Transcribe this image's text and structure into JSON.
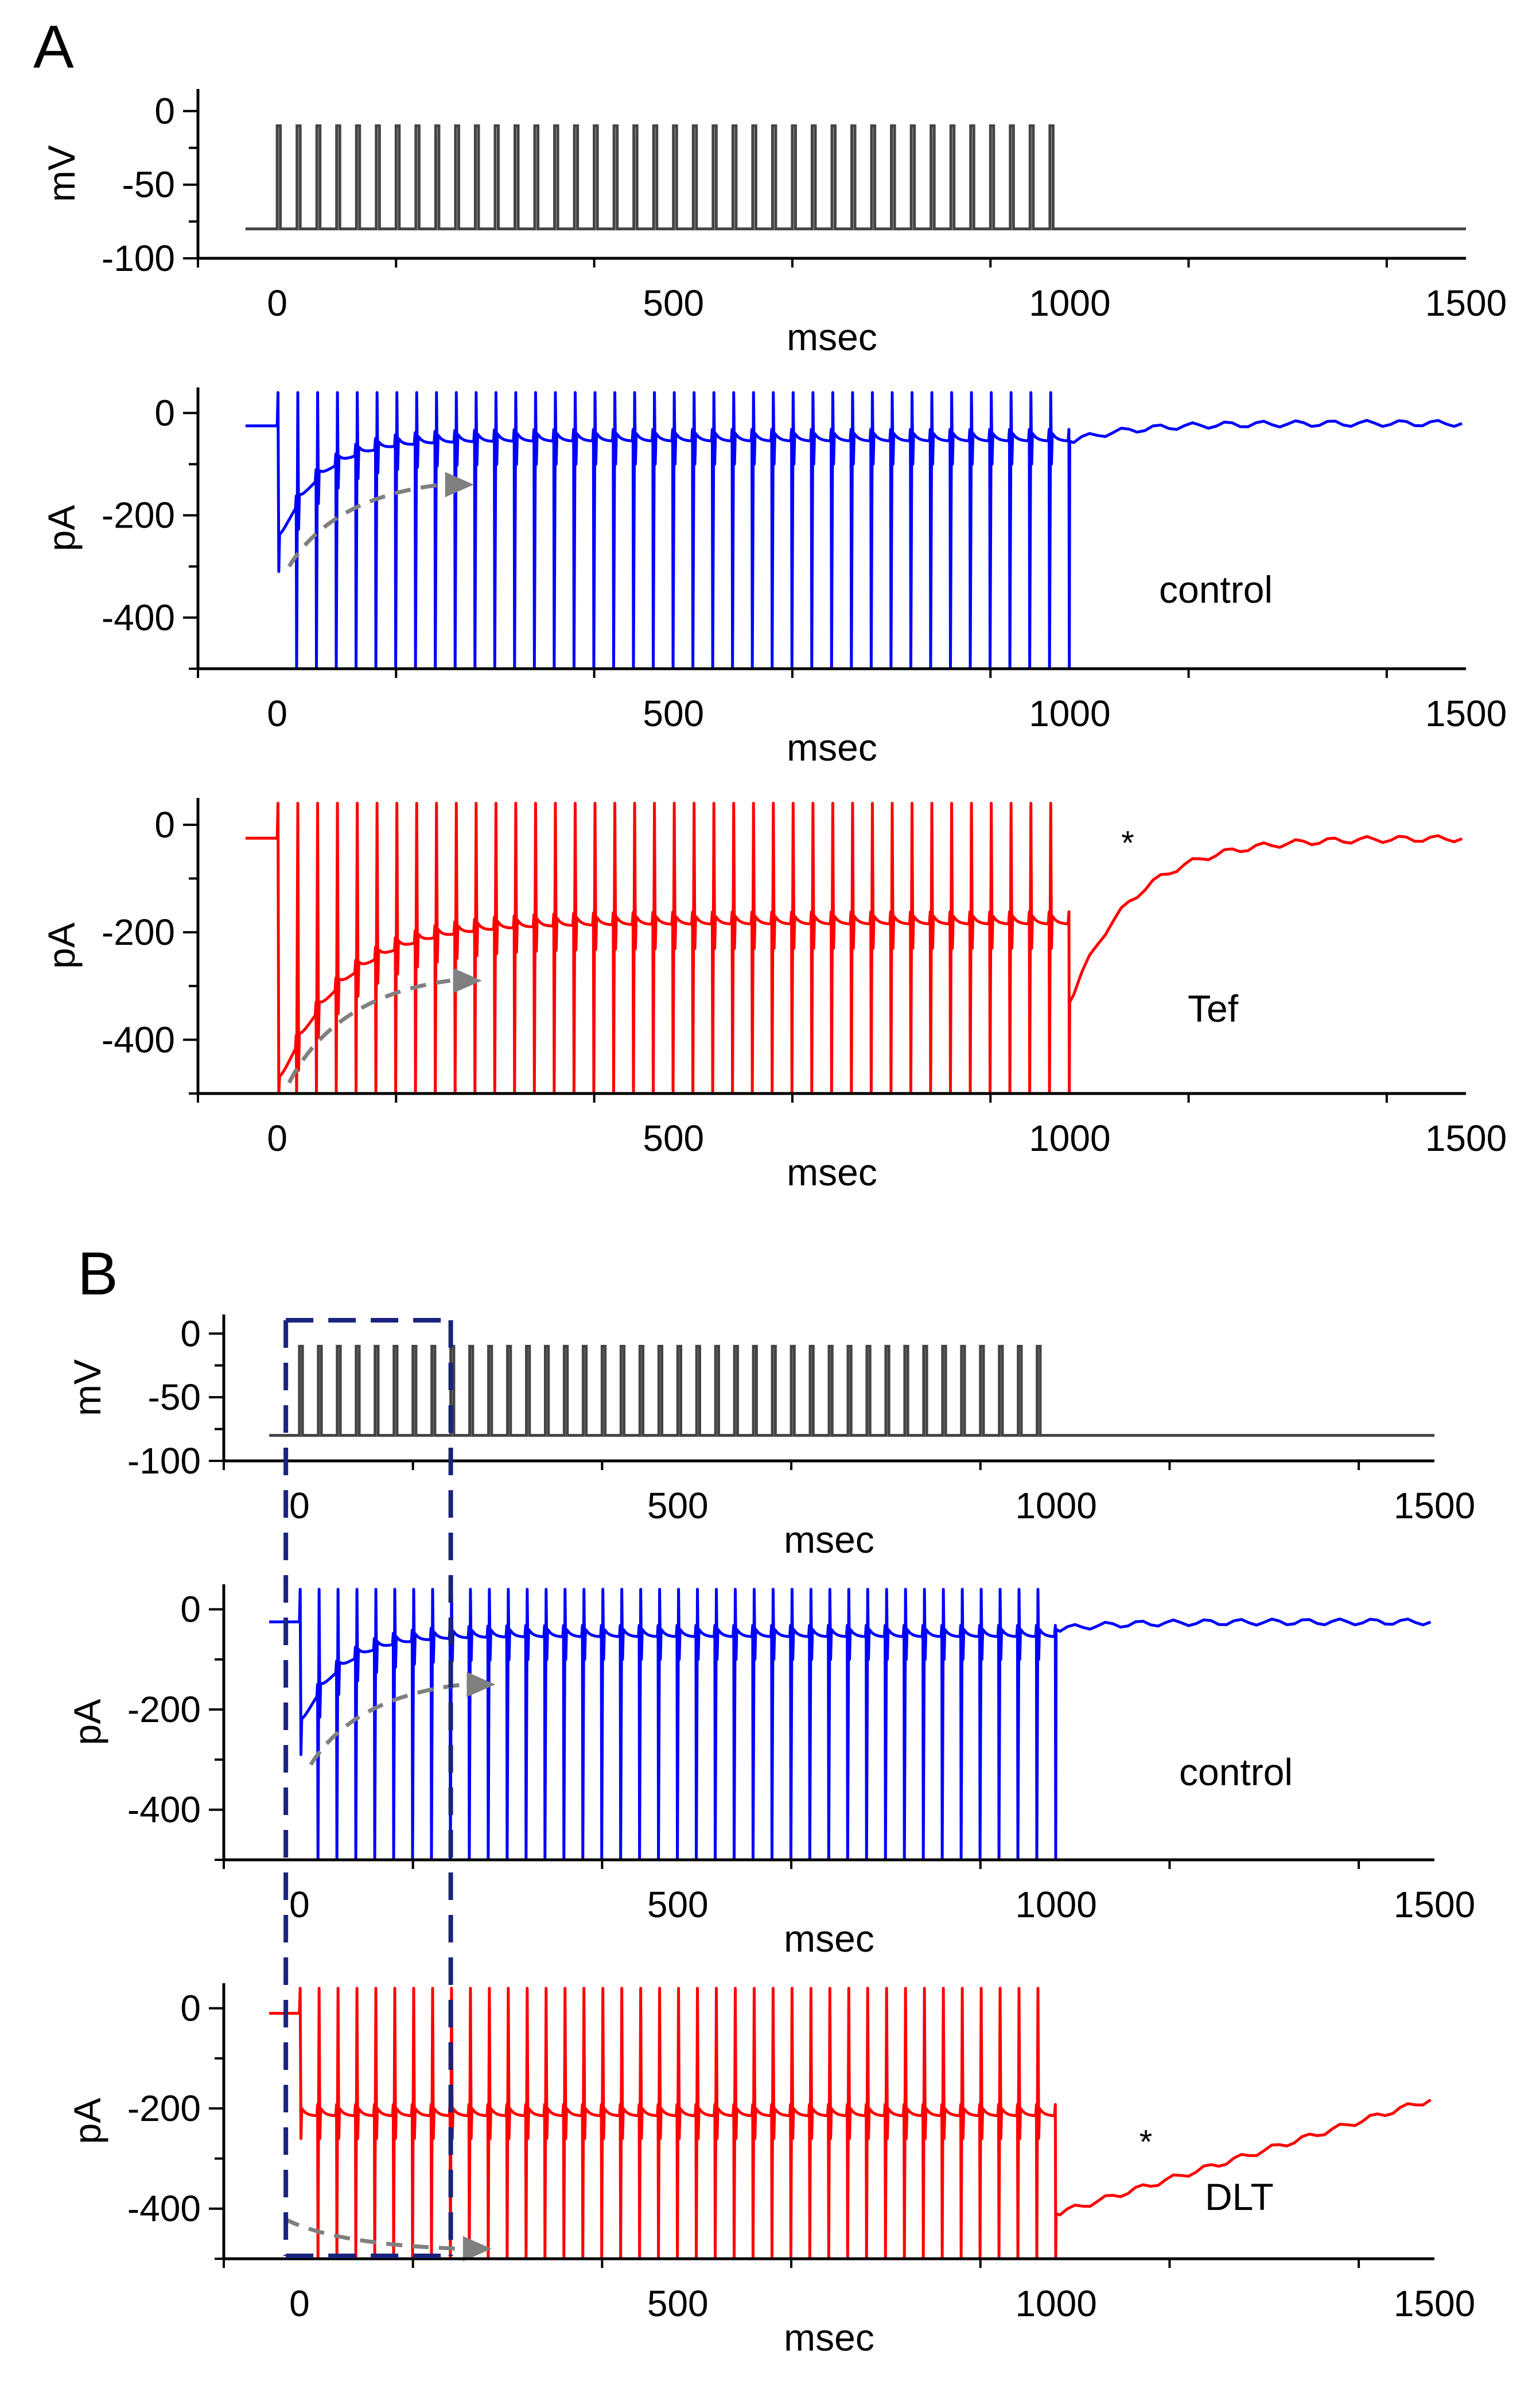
{
  "chart_data": [
    {
      "id": "A1",
      "panel": "A",
      "type": "line",
      "signal": "voltage",
      "series_color": "#444444",
      "xlabel": "msec",
      "ylabel": "mV",
      "xlim": [
        -100,
        1500
      ],
      "ylim": [
        -100,
        15
      ],
      "xticks": [
        0,
        500,
        1000,
        1500
      ],
      "yticks": [
        0,
        -50,
        -100
      ],
      "pulses": {
        "holding": -80,
        "step": -10,
        "start": 0,
        "period": 25,
        "width": 4,
        "count": 40
      }
    },
    {
      "id": "A2",
      "panel": "A",
      "type": "line",
      "signal": "current",
      "series_color": "#0000ff",
      "xlabel": "msec",
      "ylabel": "pA",
      "xlim": [
        -100,
        1500
      ],
      "ylim": [
        -500,
        50
      ],
      "xticks": [
        0,
        500,
        1000,
        1500
      ],
      "yticks": [
        0,
        -200,
        -400
      ],
      "trace": {
        "baseline": -25,
        "peak": -250,
        "steady": -40,
        "tau": 50,
        "tail": -20,
        "tail_start": -55,
        "tail_tau": 80,
        "spike_top": 40,
        "spike_bottom": -500
      },
      "arrow": {
        "from": [
          15,
          -300
        ],
        "to": [
          230,
          -140
        ]
      },
      "annotation": "control"
    },
    {
      "id": "A3",
      "panel": "A",
      "type": "line",
      "signal": "current",
      "series_color": "#ff0000",
      "xlabel": "msec",
      "ylabel": "pA",
      "xlim": [
        -100,
        1500
      ],
      "ylim": [
        -500,
        50
      ],
      "xticks": [
        0,
        500,
        1000,
        1500
      ],
      "yticks": [
        0,
        -200,
        -400
      ],
      "trace": {
        "baseline": -25,
        "peak": -480,
        "steady": -170,
        "tau": 80,
        "tail": -25,
        "tail_start": -330,
        "tail_tau": 80,
        "spike_top": 40,
        "spike_bottom": -500
      },
      "arrow": {
        "from": [
          15,
          -480
        ],
        "to": [
          240,
          -290
        ]
      },
      "annotation": "Tef",
      "star": {
        "text": "*",
        "x": 1065,
        "y": -55
      }
    },
    {
      "id": "B",
      "panel": "B",
      "letter_A": "A",
      "letter_B": "B"
    },
    {
      "id": "B1",
      "panel": "B",
      "type": "line",
      "signal": "voltage",
      "series_color": "#444444",
      "xlabel": "msec",
      "ylabel": "mV",
      "xlim": [
        -100,
        1500
      ],
      "ylim": [
        -100,
        15
      ],
      "xticks": [
        0,
        500,
        1000,
        1500
      ],
      "yticks": [
        0,
        -50,
        -100
      ],
      "pulses": {
        "holding": -80,
        "step": -10,
        "start": 0,
        "period": 25,
        "width": 4,
        "count": 40
      }
    },
    {
      "id": "B2",
      "panel": "B",
      "type": "line",
      "signal": "current",
      "series_color": "#0000ff",
      "xlabel": "msec",
      "ylabel": "pA",
      "xlim": [
        -100,
        1500
      ],
      "ylim": [
        -500,
        50
      ],
      "xticks": [
        0,
        500,
        1000,
        1500
      ],
      "yticks": [
        0,
        -200,
        -400
      ],
      "trace": {
        "baseline": -25,
        "peak": -230,
        "steady": -40,
        "tau": 50,
        "tail": -25,
        "tail_start": -40,
        "tail_tau": 80,
        "spike_top": 40,
        "spike_bottom": -500
      },
      "arrow": {
        "from": [
          15,
          -310
        ],
        "to": [
          240,
          -150
        ]
      },
      "annotation": "control"
    },
    {
      "id": "B3",
      "panel": "B",
      "type": "line",
      "signal": "current",
      "series_color": "#ff0000",
      "xlabel": "msec",
      "ylabel": "pA",
      "xlim": [
        -100,
        1500
      ],
      "ylim": [
        -500,
        50
      ],
      "xticks": [
        0,
        500,
        1000,
        1500
      ],
      "yticks": [
        0,
        -200,
        -400
      ],
      "trace": {
        "baseline": -10,
        "peak": -200,
        "steady": -200,
        "tau": 30,
        "tail": -180,
        "tail_start": -410,
        "tail_tau": 0,
        "spike_top": 40,
        "spike_bottom": -500
      },
      "arrow": {
        "from": [
          -20,
          -420
        ],
        "to": [
          235,
          -480
        ]
      },
      "annotation": "DLT",
      "star": {
        "text": "*",
        "x": 1110,
        "y": -290
      }
    }
  ]
}
